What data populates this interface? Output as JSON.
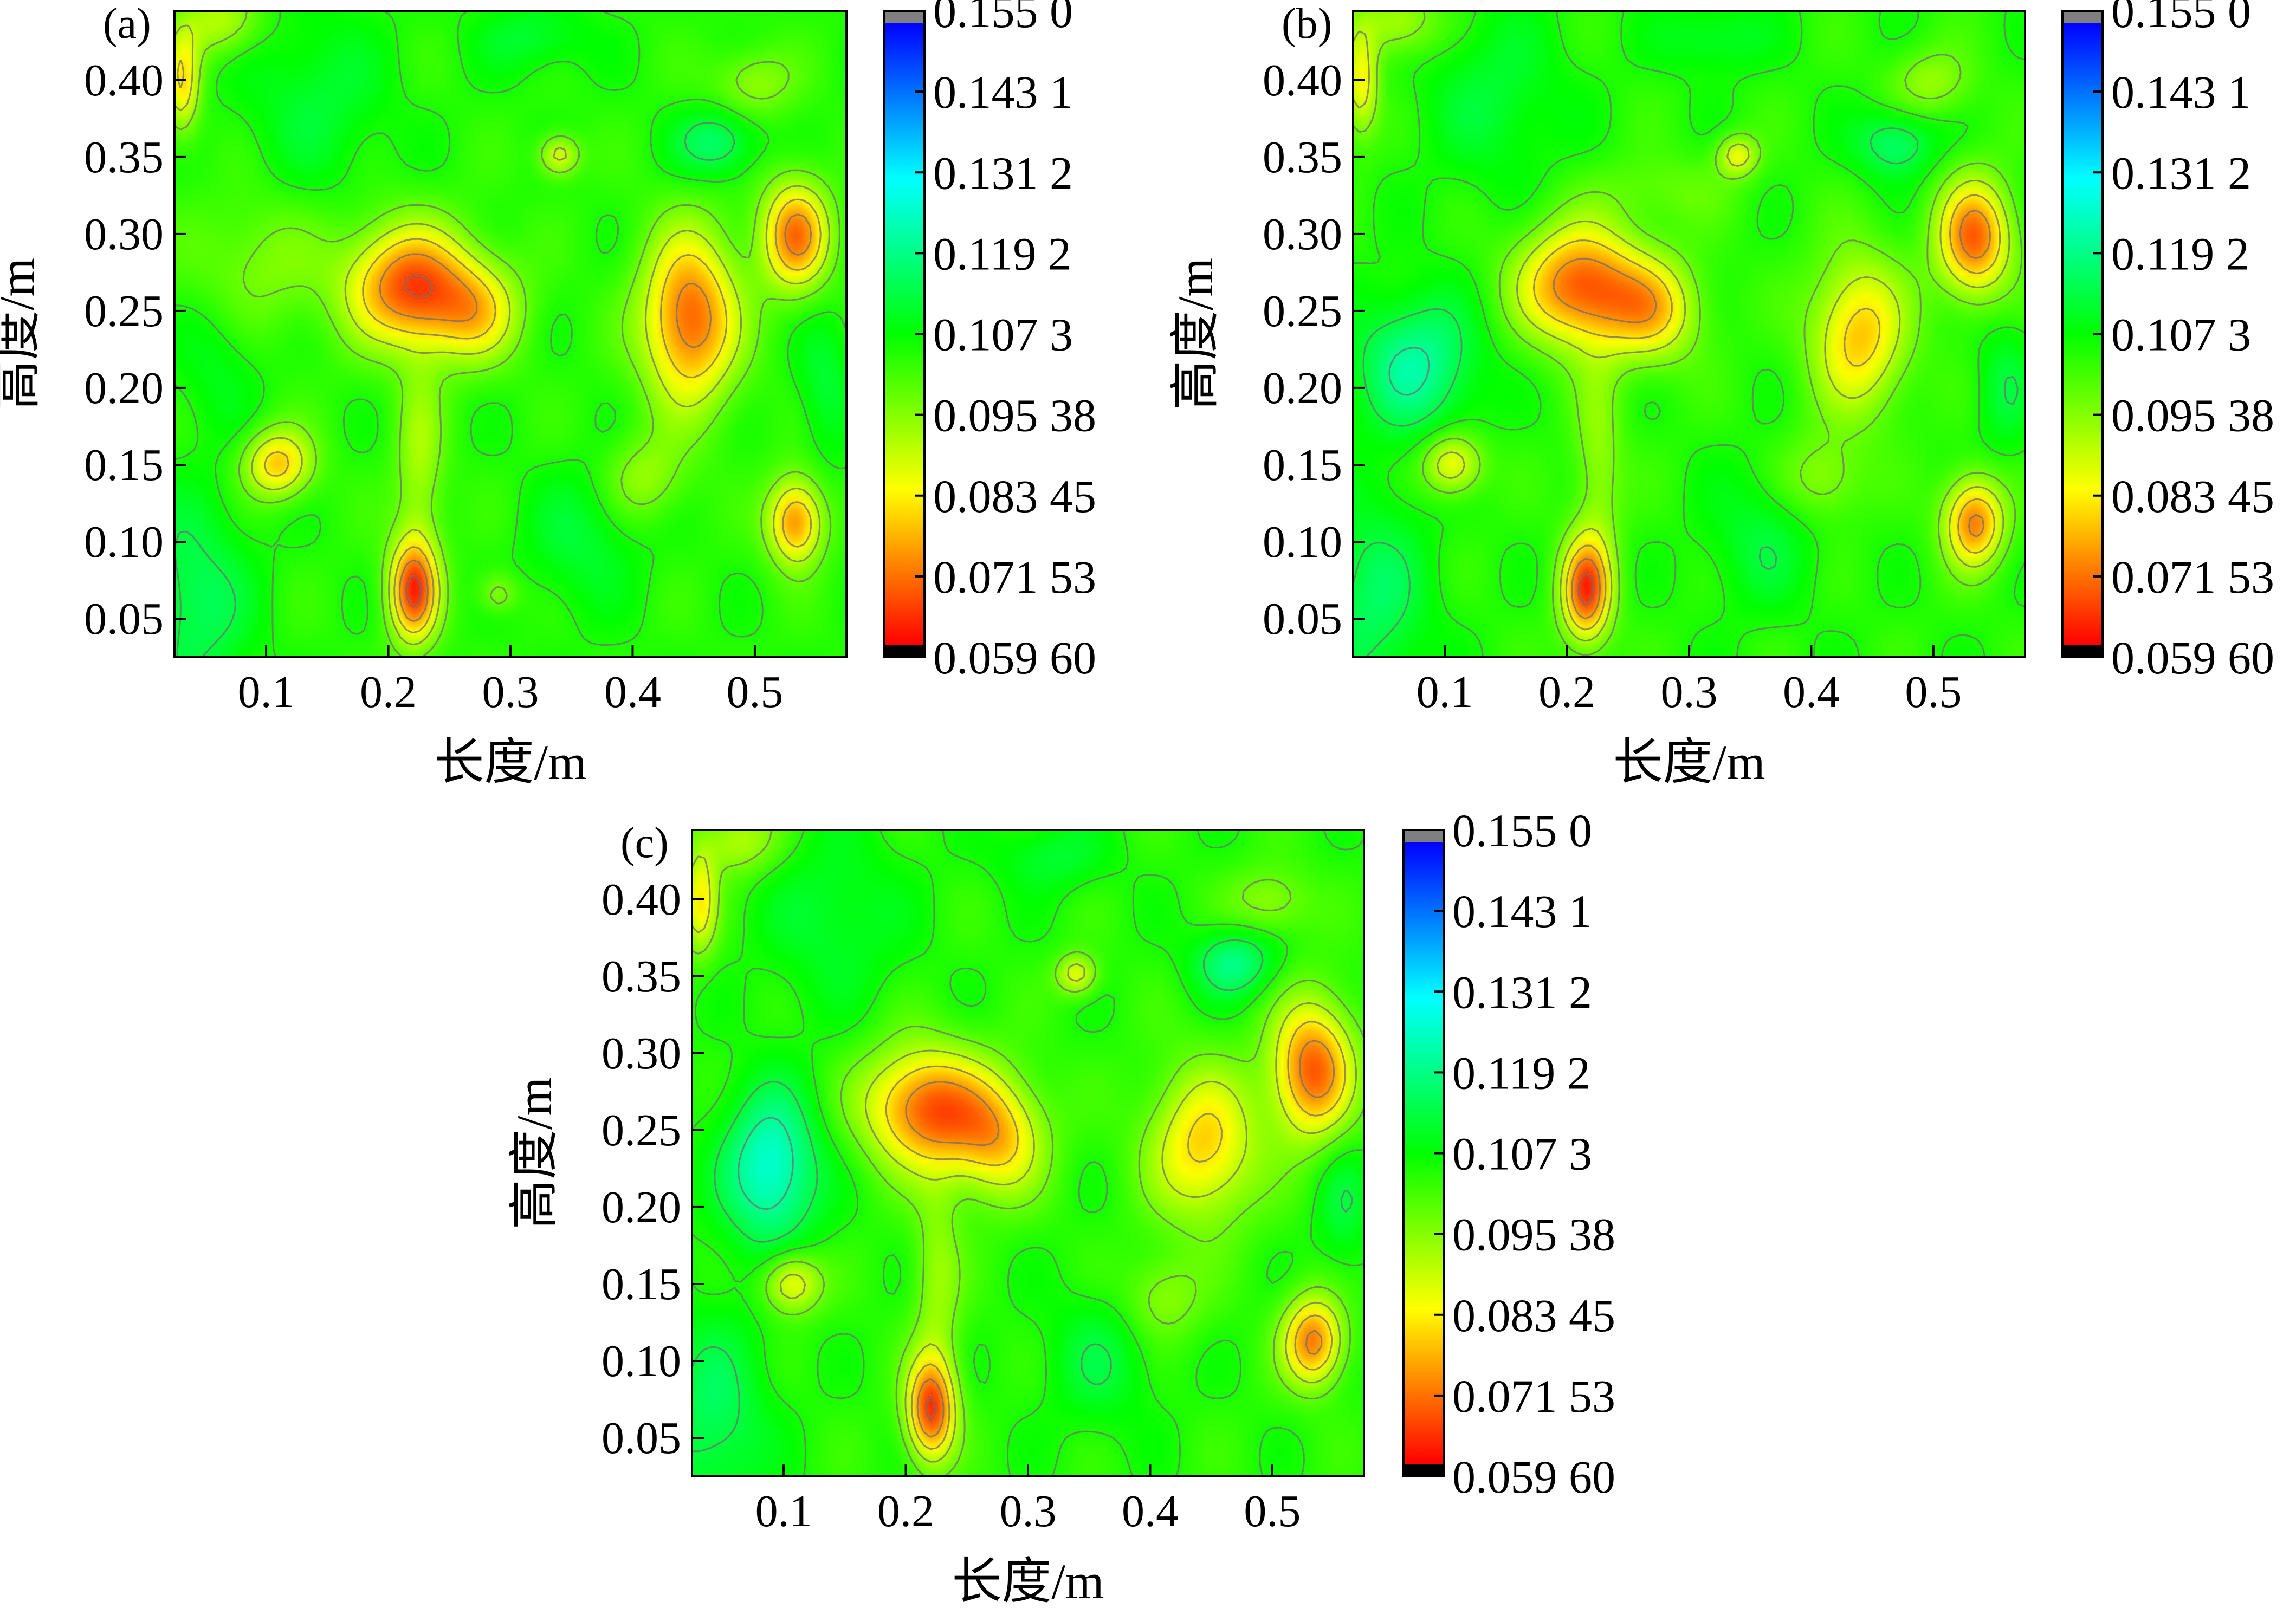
{
  "chart_data": [
    {
      "type": "heatmap",
      "panel": "(a)",
      "xlabel": "长度/m",
      "ylabel": "高度/m",
      "xticks": [
        "0.1",
        "0.2",
        "0.3",
        "0.4",
        "0.5"
      ],
      "yticks": [
        "0.05",
        "0.10",
        "0.15",
        "0.20",
        "0.25",
        "0.30",
        "0.35",
        "0.40"
      ],
      "xlim": [
        0.025,
        0.575
      ],
      "ylim": [
        0.025,
        0.445
      ],
      "background_level": 0.104,
      "features": [
        {
          "x": 0.215,
          "y": 0.267,
          "value": 0.068,
          "rx": 0.045,
          "ry": 0.035
        },
        {
          "x": 0.27,
          "y": 0.25,
          "value": 0.083,
          "rx": 0.035,
          "ry": 0.03
        },
        {
          "x": 0.448,
          "y": 0.245,
          "value": 0.068,
          "rx": 0.035,
          "ry": 0.05
        },
        {
          "x": 0.535,
          "y": 0.3,
          "value": 0.071,
          "rx": 0.025,
          "ry": 0.032
        },
        {
          "x": 0.108,
          "y": 0.15,
          "value": 0.078,
          "rx": 0.025,
          "ry": 0.02
        },
        {
          "x": 0.535,
          "y": 0.112,
          "value": 0.072,
          "rx": 0.02,
          "ry": 0.025
        },
        {
          "x": 0.22,
          "y": 0.067,
          "value": 0.066,
          "rx": 0.018,
          "ry": 0.03
        },
        {
          "x": 0.34,
          "y": 0.352,
          "value": 0.085,
          "rx": 0.015,
          "ry": 0.012
        },
        {
          "x": 0.03,
          "y": 0.4,
          "value": 0.082,
          "rx": 0.012,
          "ry": 0.03
        },
        {
          "x": 0.06,
          "y": 0.44,
          "value": 0.09,
          "rx": 0.03,
          "ry": 0.02
        },
        {
          "x": 0.225,
          "y": 0.15,
          "value": 0.092,
          "rx": 0.018,
          "ry": 0.06
        },
        {
          "x": 0.41,
          "y": 0.14,
          "value": 0.093,
          "rx": 0.03,
          "ry": 0.025
        },
        {
          "x": 0.29,
          "y": 0.065,
          "value": 0.093,
          "rx": 0.015,
          "ry": 0.012
        },
        {
          "x": 0.5,
          "y": 0.4,
          "value": 0.093,
          "rx": 0.03,
          "ry": 0.02
        },
        {
          "x": 0.09,
          "y": 0.28,
          "value": 0.095,
          "rx": 0.05,
          "ry": 0.04
        },
        {
          "x": 0.47,
          "y": 0.36,
          "value": 0.118,
          "rx": 0.03,
          "ry": 0.02
        },
        {
          "x": 0.36,
          "y": 0.1,
          "value": 0.112,
          "rx": 0.04,
          "ry": 0.04
        },
        {
          "x": 0.32,
          "y": 0.43,
          "value": 0.112,
          "rx": 0.04,
          "ry": 0.02
        },
        {
          "x": 0.04,
          "y": 0.06,
          "value": 0.116,
          "rx": 0.04,
          "ry": 0.06
        },
        {
          "x": 0.56,
          "y": 0.2,
          "value": 0.112,
          "rx": 0.02,
          "ry": 0.04
        },
        {
          "x": 0.14,
          "y": 0.39,
          "value": 0.112,
          "rx": 0.05,
          "ry": 0.05
        },
        {
          "x": 0.06,
          "y": 0.22,
          "value": 0.11,
          "rx": 0.03,
          "ry": 0.04
        }
      ]
    },
    {
      "type": "heatmap",
      "panel": "(b)",
      "xlabel": "长度/m",
      "ylabel": "高度/m",
      "xticks": [
        "0.1",
        "0.2",
        "0.3",
        "0.4",
        "0.5"
      ],
      "yticks": [
        "0.05",
        "0.10",
        "0.15",
        "0.20",
        "0.25",
        "0.30",
        "0.35",
        "0.40"
      ],
      "xlim": [
        0.025,
        0.575
      ],
      "ylim": [
        0.025,
        0.445
      ],
      "background_level": 0.104,
      "features": [
        {
          "x": 0.21,
          "y": 0.267,
          "value": 0.068,
          "rx": 0.045,
          "ry": 0.035
        },
        {
          "x": 0.27,
          "y": 0.25,
          "value": 0.082,
          "rx": 0.035,
          "ry": 0.03
        },
        {
          "x": 0.44,
          "y": 0.235,
          "value": 0.078,
          "rx": 0.035,
          "ry": 0.045
        },
        {
          "x": 0.535,
          "y": 0.298,
          "value": 0.069,
          "rx": 0.027,
          "ry": 0.034
        },
        {
          "x": 0.105,
          "y": 0.15,
          "value": 0.082,
          "rx": 0.022,
          "ry": 0.018
        },
        {
          "x": 0.535,
          "y": 0.112,
          "value": 0.071,
          "rx": 0.022,
          "ry": 0.026
        },
        {
          "x": 0.215,
          "y": 0.067,
          "value": 0.066,
          "rx": 0.018,
          "ry": 0.03
        },
        {
          "x": 0.34,
          "y": 0.352,
          "value": 0.085,
          "rx": 0.015,
          "ry": 0.012
        },
        {
          "x": 0.03,
          "y": 0.4,
          "value": 0.083,
          "rx": 0.012,
          "ry": 0.03
        },
        {
          "x": 0.06,
          "y": 0.44,
          "value": 0.09,
          "rx": 0.03,
          "ry": 0.02
        },
        {
          "x": 0.225,
          "y": 0.15,
          "value": 0.093,
          "rx": 0.018,
          "ry": 0.06
        },
        {
          "x": 0.41,
          "y": 0.14,
          "value": 0.093,
          "rx": 0.03,
          "ry": 0.025
        },
        {
          "x": 0.5,
          "y": 0.4,
          "value": 0.093,
          "rx": 0.03,
          "ry": 0.02
        },
        {
          "x": 0.075,
          "y": 0.215,
          "value": 0.122,
          "rx": 0.045,
          "ry": 0.04
        },
        {
          "x": 0.47,
          "y": 0.36,
          "value": 0.118,
          "rx": 0.03,
          "ry": 0.02
        },
        {
          "x": 0.36,
          "y": 0.1,
          "value": 0.112,
          "rx": 0.04,
          "ry": 0.04
        },
        {
          "x": 0.32,
          "y": 0.43,
          "value": 0.112,
          "rx": 0.04,
          "ry": 0.02
        },
        {
          "x": 0.04,
          "y": 0.06,
          "value": 0.116,
          "rx": 0.04,
          "ry": 0.06
        },
        {
          "x": 0.56,
          "y": 0.2,
          "value": 0.112,
          "rx": 0.02,
          "ry": 0.04
        },
        {
          "x": 0.14,
          "y": 0.39,
          "value": 0.112,
          "rx": 0.05,
          "ry": 0.05
        },
        {
          "x": 0.28,
          "y": 0.33,
          "value": 0.098,
          "rx": 0.05,
          "ry": 0.02
        }
      ]
    },
    {
      "type": "heatmap",
      "panel": "(c)",
      "xlabel": "长度/m",
      "ylabel": "高度/m",
      "xticks": [
        "0.1",
        "0.2",
        "0.3",
        "0.4",
        "0.5"
      ],
      "yticks": [
        "0.05",
        "0.10",
        "0.15",
        "0.20",
        "0.25",
        "0.30",
        "0.35",
        "0.40"
      ],
      "xlim": [
        0.025,
        0.575
      ],
      "ylim": [
        0.025,
        0.445
      ],
      "background_level": 0.104,
      "features": [
        {
          "x": 0.215,
          "y": 0.265,
          "value": 0.069,
          "rx": 0.045,
          "ry": 0.035
        },
        {
          "x": 0.275,
          "y": 0.245,
          "value": 0.08,
          "rx": 0.035,
          "ry": 0.035
        },
        {
          "x": 0.445,
          "y": 0.24,
          "value": 0.079,
          "rx": 0.04,
          "ry": 0.045
        },
        {
          "x": 0.535,
          "y": 0.29,
          "value": 0.068,
          "rx": 0.03,
          "ry": 0.04
        },
        {
          "x": 0.105,
          "y": 0.15,
          "value": 0.082,
          "rx": 0.022,
          "ry": 0.018
        },
        {
          "x": 0.535,
          "y": 0.112,
          "value": 0.071,
          "rx": 0.022,
          "ry": 0.026
        },
        {
          "x": 0.22,
          "y": 0.067,
          "value": 0.066,
          "rx": 0.018,
          "ry": 0.03
        },
        {
          "x": 0.34,
          "y": 0.352,
          "value": 0.085,
          "rx": 0.015,
          "ry": 0.012
        },
        {
          "x": 0.03,
          "y": 0.4,
          "value": 0.083,
          "rx": 0.012,
          "ry": 0.03
        },
        {
          "x": 0.06,
          "y": 0.44,
          "value": 0.09,
          "rx": 0.03,
          "ry": 0.02
        },
        {
          "x": 0.225,
          "y": 0.15,
          "value": 0.093,
          "rx": 0.018,
          "ry": 0.06
        },
        {
          "x": 0.41,
          "y": 0.14,
          "value": 0.093,
          "rx": 0.03,
          "ry": 0.025
        },
        {
          "x": 0.5,
          "y": 0.4,
          "value": 0.093,
          "rx": 0.03,
          "ry": 0.02
        },
        {
          "x": 0.088,
          "y": 0.225,
          "value": 0.128,
          "rx": 0.035,
          "ry": 0.045
        },
        {
          "x": 0.47,
          "y": 0.36,
          "value": 0.12,
          "rx": 0.03,
          "ry": 0.02
        },
        {
          "x": 0.36,
          "y": 0.1,
          "value": 0.112,
          "rx": 0.04,
          "ry": 0.04
        },
        {
          "x": 0.32,
          "y": 0.43,
          "value": 0.112,
          "rx": 0.04,
          "ry": 0.02
        },
        {
          "x": 0.04,
          "y": 0.06,
          "value": 0.116,
          "rx": 0.04,
          "ry": 0.06
        },
        {
          "x": 0.56,
          "y": 0.2,
          "value": 0.112,
          "rx": 0.02,
          "ry": 0.04
        },
        {
          "x": 0.14,
          "y": 0.39,
          "value": 0.112,
          "rx": 0.05,
          "ry": 0.05
        }
      ]
    }
  ],
  "colorbar": {
    "labels": [
      "0.155 0",
      "0.143 1",
      "0.131 2",
      "0.119 2",
      "0.107 3",
      "0.095 38",
      "0.083 45",
      "0.071 53",
      "0.059 60"
    ],
    "values": [
      0.155,
      0.1431,
      0.1312,
      0.1192,
      0.1073,
      0.09538,
      0.08345,
      0.07153,
      0.0596
    ],
    "over_color": "#7f7f7f",
    "under_color": "#000000",
    "stops": [
      "#0000ff",
      "#00ffff",
      "#00ff00",
      "#ffff00",
      "#ff0000"
    ]
  },
  "colors": {
    "contour_line": "#6f6f6f",
    "axis": "#000000",
    "background": "#ffffff"
  }
}
